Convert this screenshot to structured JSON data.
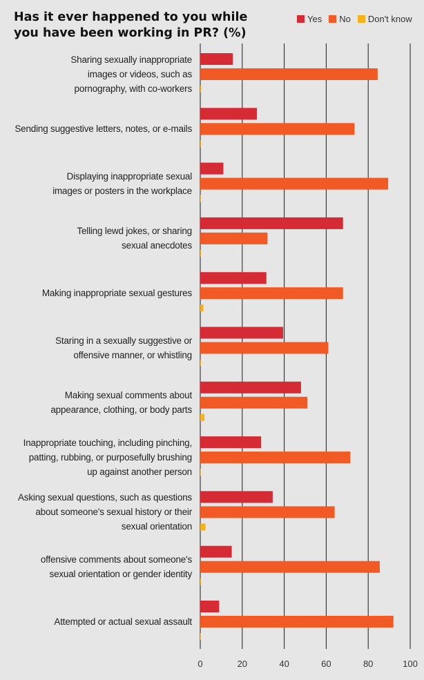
{
  "title": "Has it ever happened to you while you have been working in PR? (%)",
  "colors": {
    "yes": "#d42b35",
    "no": "#f15a24",
    "dont_know": "#f5b21b"
  },
  "chart_data": {
    "type": "bar",
    "orientation": "horizontal",
    "title": "Has it ever happened to you while you have been working in PR? (%)",
    "xlim": [
      0,
      100
    ],
    "xticks": [
      "0",
      "20",
      "40",
      "60",
      "80",
      "100"
    ],
    "grid": true,
    "legend_position": "top-right",
    "categories": [
      "Sharing sexually inappropriate images or videos, such as pornography, with co-workers",
      "Sending suggestive letters, notes, or e-mails",
      "Displaying inappropriate sexual images or posters in the workplace",
      "Telling lewd jokes, or sharing sexual anecdotes",
      "Making inappropriate sexual gestures",
      "Staring in a sexually suggestive or offensive manner, or whistling",
      "Making sexual comments about appearance, clothing, or body parts",
      "Inappropriate touching, including pinching, patting, rubbing, or purposefully brushing up against another person",
      "Asking sexual questions, such as questions about someone's sexual history or their sexual orientation",
      "offensive comments about someone's sexual orientation or gender identity",
      "Attempted or actual sexual assault"
    ],
    "category_lines": [
      [
        "Sharing sexually inappropriate",
        "images or videos, such as",
        "pornography, with co-workers"
      ],
      [
        "Sending suggestive letters, notes, or e-mails"
      ],
      [
        "Displaying inappropriate sexual",
        "images or posters in the workplace"
      ],
      [
        "Telling lewd jokes, or sharing",
        "sexual anecdotes"
      ],
      [
        "Making inappropriate sexual gestures"
      ],
      [
        "Staring in a sexually suggestive or",
        "offensive manner, or whistling"
      ],
      [
        "Making sexual comments about",
        "appearance, clothing, or body parts"
      ],
      [
        "Inappropriate touching, including pinching,",
        "patting, rubbing, or purposefully brushing",
        "up against another person"
      ],
      [
        "Asking sexual questions, such as questions",
        "about someone's sexual history or their",
        "sexual orientation"
      ],
      [
        "offensive comments about someone's",
        "sexual orientation or gender identity"
      ],
      [
        "Attempted or actual sexual assault"
      ]
    ],
    "series": [
      {
        "name": "Yes",
        "color": "#d42b35",
        "values": [
          15.5,
          27,
          11,
          68,
          31.5,
          39.5,
          48,
          29,
          34.5,
          15,
          9
        ]
      },
      {
        "name": "No",
        "color": "#f15a24",
        "values": [
          84.5,
          73.5,
          89.5,
          32,
          68,
          61,
          51,
          71.5,
          64,
          85.5,
          92
        ]
      },
      {
        "name": "Don't know",
        "color": "#f5b21b",
        "values": [
          0.4,
          0.3,
          0.2,
          0.3,
          1.5,
          0.3,
          2,
          0.2,
          2.5,
          0.3,
          0.2
        ]
      }
    ]
  }
}
